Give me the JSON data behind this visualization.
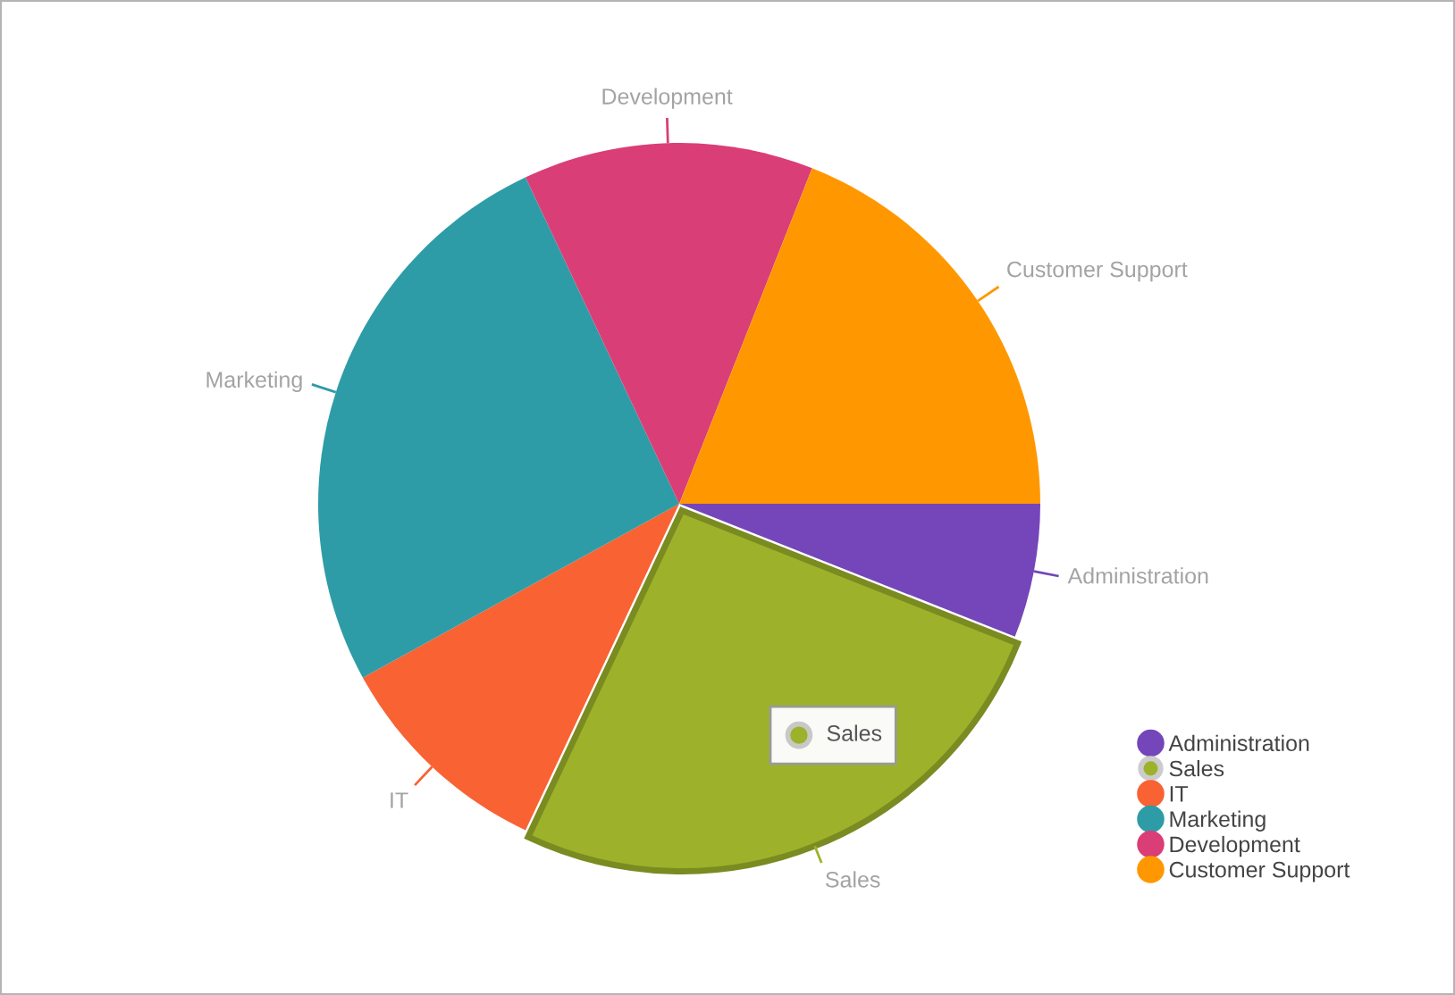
{
  "chart_data": {
    "type": "pie",
    "categories": [
      "Administration",
      "Sales",
      "IT",
      "Marketing",
      "Development",
      "Customer Support"
    ],
    "values": [
      6,
      26,
      10,
      26,
      13,
      19
    ],
    "colors": [
      "#7446b9",
      "#9db22a",
      "#f96233",
      "#2e9ca6",
      "#da3e76",
      "#ff9800"
    ],
    "legend": "bottom right",
    "annotations": [
      {
        "text": "Sales",
        "x": "Sales"
      }
    ]
  }
}
